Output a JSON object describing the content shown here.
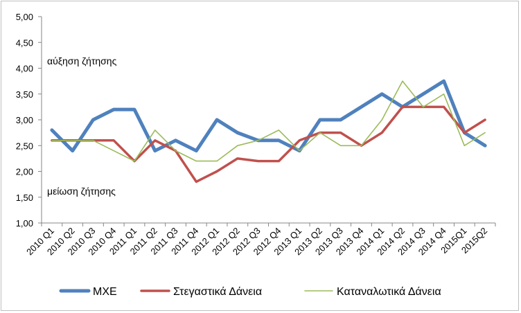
{
  "chart_data": {
    "type": "line",
    "categories": [
      "2010 Q1",
      "2010 Q2",
      "2010 Q3",
      "2010 Q4",
      "2011 Q1",
      "2011 Q2",
      "2011 Q3",
      "2011 Q4",
      "2012 Q1",
      "2012 Q2",
      "2012 Q3",
      "2012 Q4",
      "2013 Q1",
      "2013 Q2",
      "2013 Q3",
      "2013 Q4",
      "2014 Q1",
      "2014 Q2",
      "2014 Q3",
      "2014 Q4",
      "2015Q1",
      "2015Q2"
    ],
    "series": [
      {
        "name": "ΜΧΕ",
        "color": "#4f81bd",
        "values": [
          2.8,
          2.4,
          3.0,
          3.2,
          3.2,
          2.4,
          2.6,
          2.4,
          3.0,
          2.75,
          2.6,
          2.6,
          2.4,
          3.0,
          3.0,
          3.25,
          3.5,
          3.25,
          3.5,
          3.75,
          2.75,
          2.5
        ]
      },
      {
        "name": "Στεγαστικά Δάνεια",
        "color": "#c0504d",
        "values": [
          2.6,
          2.6,
          2.6,
          2.6,
          2.2,
          2.6,
          2.4,
          1.8,
          2.0,
          2.25,
          2.2,
          2.2,
          2.6,
          2.75,
          2.75,
          2.5,
          2.75,
          3.25,
          3.25,
          3.25,
          2.75,
          3.0
        ]
      },
      {
        "name": "Καταναλωτικά Δάνεια",
        "color": "#9bbb59",
        "values": [
          2.6,
          2.6,
          2.6,
          2.4,
          2.2,
          2.8,
          2.4,
          2.2,
          2.2,
          2.5,
          2.6,
          2.8,
          2.4,
          2.75,
          2.5,
          2.5,
          3.0,
          3.75,
          3.25,
          3.5,
          2.5,
          2.75
        ]
      }
    ],
    "ylim": [
      1.0,
      5.0
    ],
    "yticks": [
      "1,00",
      "1,50",
      "2,00",
      "2,50",
      "3,00",
      "3,50",
      "4,00",
      "4,50",
      "5,00"
    ],
    "annotations": {
      "upper": "αύξηση ζήτησης",
      "lower": "μείωση ζήτησης"
    },
    "grid": false,
    "legend": "bottom"
  }
}
